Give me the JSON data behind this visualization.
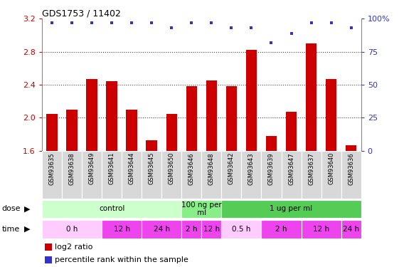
{
  "title": "GDS1753 / 11402",
  "samples": [
    "GSM93635",
    "GSM93638",
    "GSM93649",
    "GSM93641",
    "GSM93644",
    "GSM93645",
    "GSM93650",
    "GSM93646",
    "GSM93648",
    "GSM93642",
    "GSM93643",
    "GSM93639",
    "GSM93647",
    "GSM93637",
    "GSM93640",
    "GSM93636"
  ],
  "log2_ratio": [
    2.05,
    2.1,
    2.47,
    2.44,
    2.1,
    1.73,
    2.05,
    2.38,
    2.45,
    2.38,
    2.82,
    1.78,
    2.07,
    2.9,
    2.47,
    1.67
  ],
  "percentile": [
    97,
    97,
    97,
    97,
    97,
    97,
    93,
    97,
    97,
    93,
    93,
    82,
    89,
    97,
    97,
    93
  ],
  "ylim": [
    1.6,
    3.2
  ],
  "yticks_left": [
    1.6,
    2.0,
    2.4,
    2.8,
    3.2
  ],
  "right_ytick_pcts": [
    0,
    25,
    50,
    75,
    100
  ],
  "right_ytick_labels": [
    "0",
    "25",
    "50",
    "75",
    "100%"
  ],
  "bar_color": "#cc0000",
  "dot_color": "#3333cc",
  "bg_color": "#ffffff",
  "grid_color": "#444444",
  "dose_groups": [
    {
      "label": "control",
      "start": 0,
      "end": 6,
      "color": "#ccffcc"
    },
    {
      "label": "100 ng per\nml",
      "start": 7,
      "end": 8,
      "color": "#88ee88"
    },
    {
      "label": "1 ug per ml",
      "start": 9,
      "end": 15,
      "color": "#55cc55"
    }
  ],
  "time_groups": [
    {
      "label": "0 h",
      "start": 0,
      "end": 2,
      "color": "#ffccff"
    },
    {
      "label": "12 h",
      "start": 3,
      "end": 4,
      "color": "#ee44ee"
    },
    {
      "label": "24 h",
      "start": 5,
      "end": 6,
      "color": "#ee44ee"
    },
    {
      "label": "2 h",
      "start": 7,
      "end": 7,
      "color": "#ee44ee"
    },
    {
      "label": "12 h",
      "start": 8,
      "end": 8,
      "color": "#ee44ee"
    },
    {
      "label": "0.5 h",
      "start": 9,
      "end": 10,
      "color": "#ffccff"
    },
    {
      "label": "2 h",
      "start": 11,
      "end": 12,
      "color": "#ee44ee"
    },
    {
      "label": "12 h",
      "start": 13,
      "end": 14,
      "color": "#ee44ee"
    },
    {
      "label": "24 h",
      "start": 15,
      "end": 15,
      "color": "#ee44ee"
    }
  ],
  "legend_bar_label": "log2 ratio",
  "legend_dot_label": "percentile rank within the sample",
  "bar_color_left_axis": "#cc0000",
  "right_axis_color": "#3333cc",
  "label_bg": "#d8d8d8"
}
